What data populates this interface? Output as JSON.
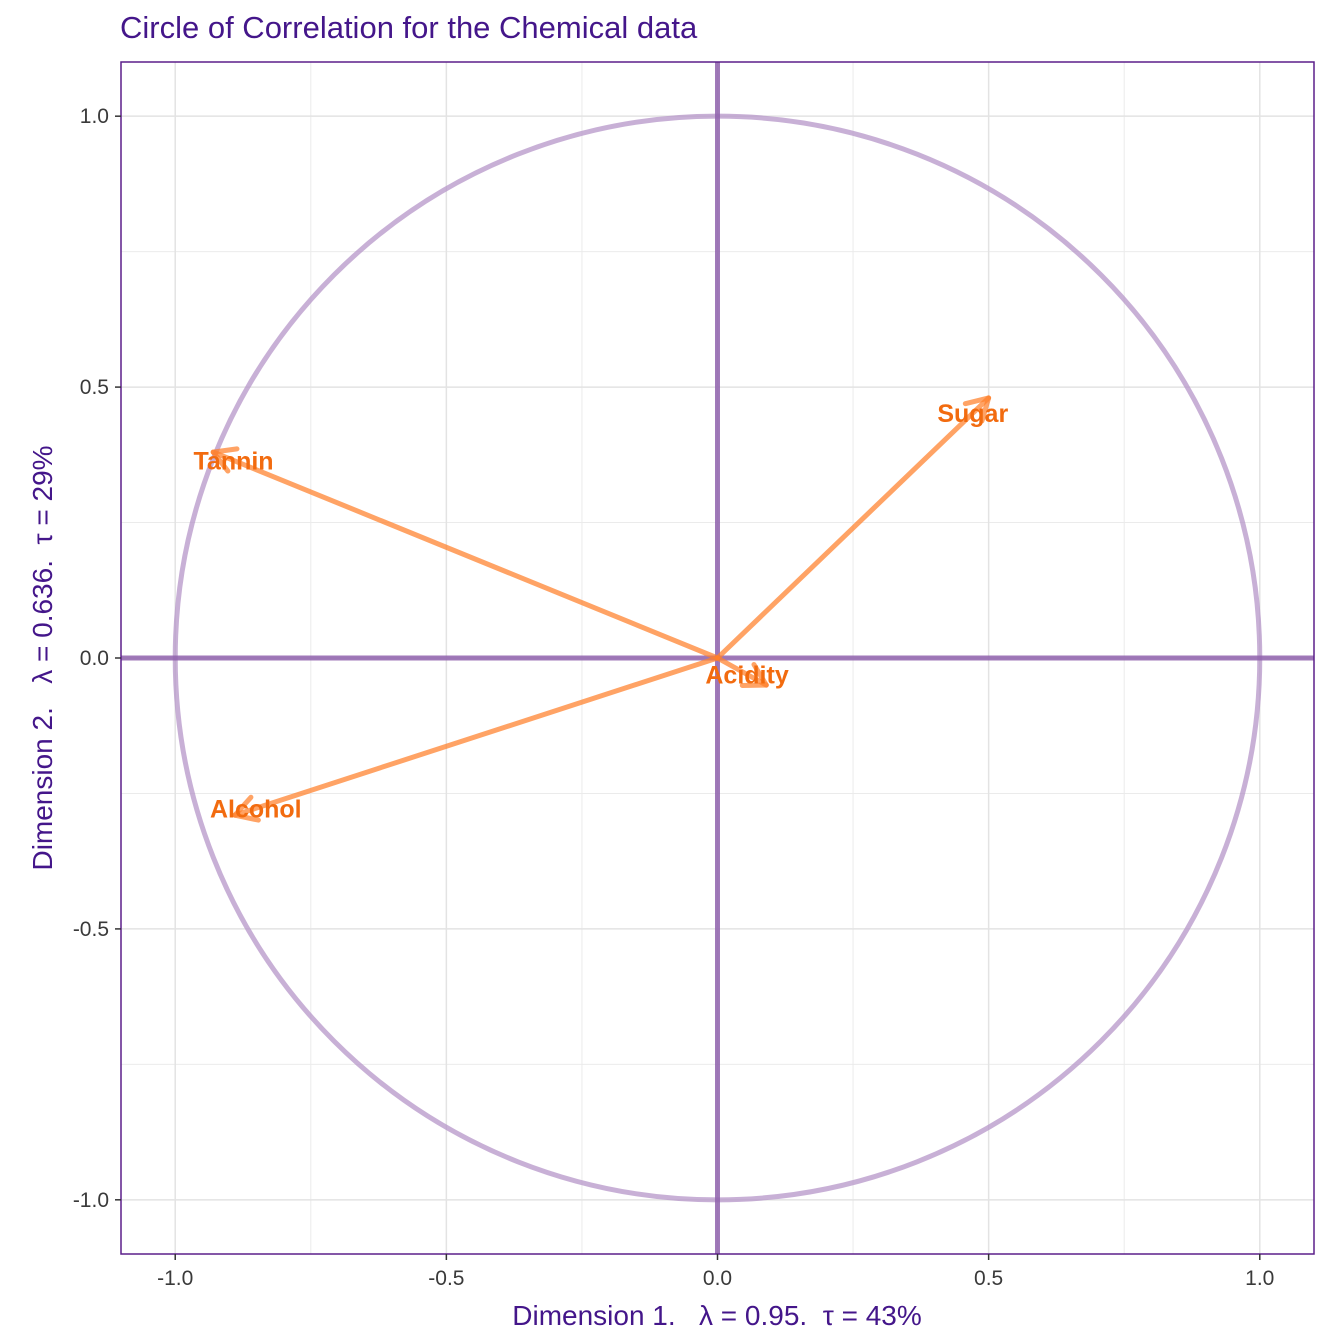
{
  "chart_data": {
    "type": "scatter",
    "title": "Circle of Correlation for the Chemical data",
    "xlabel": "Dimension 1.   λ = 0.95.  τ = 43%",
    "ylabel": "Dimension 2.   λ = 0.636.  τ = 29%",
    "xlim": [
      -1.1,
      1.1
    ],
    "ylim": [
      -1.1,
      1.1
    ],
    "x_ticks": [
      -1.0,
      -0.5,
      0.0,
      0.5,
      1.0
    ],
    "y_ticks": [
      -1.0,
      -0.5,
      0.0,
      0.5,
      1.0
    ],
    "x_tick_labels": [
      "-1.0",
      "-0.5",
      "0.0",
      "0.5",
      "1.0"
    ],
    "y_tick_labels": [
      "-1.0",
      "-0.5",
      "0.0",
      "0.5",
      "1.0"
    ],
    "grid": true,
    "unit_circle": true,
    "arrows": [
      {
        "label": "Tannin",
        "x": -0.93,
        "y": 0.38
      },
      {
        "label": "Sugar",
        "x": 0.5,
        "y": 0.48
      },
      {
        "label": "Acidity",
        "x": 0.09,
        "y": -0.05
      },
      {
        "label": "Alcohol",
        "x": -0.89,
        "y": -0.29
      }
    ],
    "colors": {
      "arrow": "#ff7f2a",
      "label": "#f26b0f",
      "circle": "#b695c8",
      "axis_lines": "#8f62ad",
      "frame": "#5b1f8a",
      "title": "#44168a"
    }
  }
}
